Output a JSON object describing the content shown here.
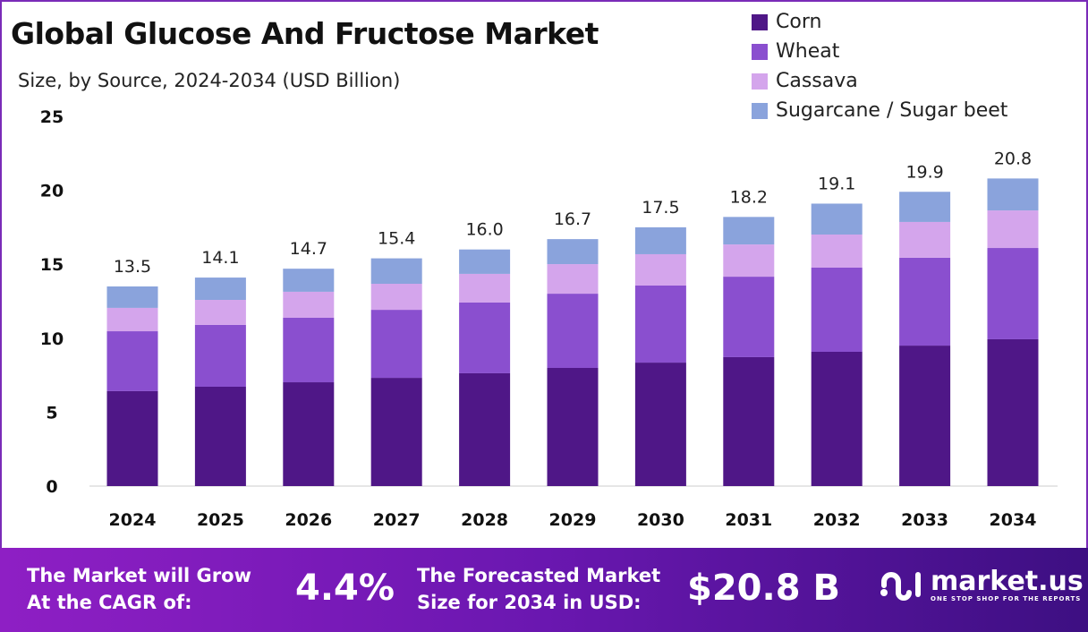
{
  "chart_data": {
    "type": "bar",
    "stacked": true,
    "title": "Global Glucose And Fructose Market",
    "subtitle": "Size, by Source, 2024-2034 (USD Billion)",
    "xlabel": "",
    "ylabel": "",
    "ylim": [
      0,
      25
    ],
    "yticks": [
      "0",
      "5",
      "10",
      "15",
      "20",
      "25"
    ],
    "grid": false,
    "legend_position": "top-right",
    "categories": [
      "2024",
      "2025",
      "2026",
      "2027",
      "2028",
      "2029",
      "2030",
      "2031",
      "2032",
      "2033",
      "2034"
    ],
    "totals": [
      "13.5",
      "14.1",
      "14.7",
      "15.4",
      "16.0",
      "16.7",
      "17.5",
      "18.2",
      "19.1",
      "19.9",
      "20.8"
    ],
    "series": [
      {
        "name": "Corn",
        "color": "#4f1787",
        "values": [
          6.42,
          6.72,
          7.02,
          7.32,
          7.63,
          7.99,
          8.35,
          8.72,
          9.08,
          9.5,
          9.93
        ]
      },
      {
        "name": "Wheat",
        "color": "#8a4fcf",
        "values": [
          4.05,
          4.18,
          4.36,
          4.6,
          4.78,
          5.02,
          5.21,
          5.44,
          5.69,
          5.94,
          6.17
        ]
      },
      {
        "name": "Cassava",
        "color": "#d4a5ec",
        "values": [
          1.58,
          1.69,
          1.76,
          1.76,
          1.94,
          2.0,
          2.12,
          2.18,
          2.24,
          2.42,
          2.54
        ]
      },
      {
        "name": "Sugarcane / Sugar beet",
        "color": "#8aa3dc",
        "values": [
          1.45,
          1.51,
          1.56,
          1.72,
          1.65,
          1.69,
          1.82,
          1.86,
          2.09,
          2.04,
          2.16
        ]
      }
    ]
  },
  "footer": {
    "cagr_label_1": "The Market will Grow",
    "cagr_label_2": "At the CAGR of:",
    "cagr_value": "4.4%",
    "forecast_label_1": "The Forecasted Market",
    "forecast_label_2": "Size for 2034 in USD:",
    "forecast_value": "$20.8 B",
    "logo_name": "market.us",
    "logo_tagline": "ONE STOP SHOP FOR THE REPORTS"
  }
}
